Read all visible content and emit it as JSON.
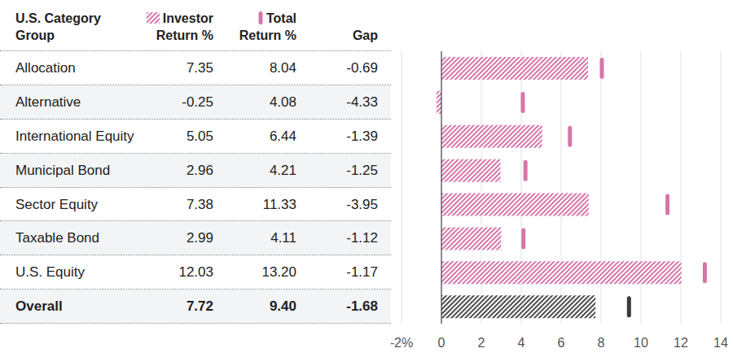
{
  "chart_data": {
    "type": "bar",
    "orientation": "horizontal",
    "ylabel": "U.S. Category Group",
    "categories": [
      "Allocation",
      "Alternative",
      "International Equity",
      "Municipal Bond",
      "Sector Equity",
      "Taxable Bond",
      "U.S. Equity",
      "Overall"
    ],
    "series": [
      {
        "name": "Investor Return %",
        "type": "bar",
        "colors": [
          "#d676ab",
          "#d676ab",
          "#d676ab",
          "#d676ab",
          "#d676ab",
          "#d676ab",
          "#d676ab",
          "#4d4d4d"
        ],
        "values": [
          7.35,
          -0.25,
          5.05,
          2.96,
          7.38,
          2.99,
          12.03,
          7.72
        ]
      },
      {
        "name": "Total Return %",
        "type": "scatter",
        "marker": "line",
        "colors": [
          "#d676ab",
          "#d676ab",
          "#d676ab",
          "#d676ab",
          "#d676ab",
          "#d676ab",
          "#d676ab",
          "#3a3a3a"
        ],
        "values": [
          8.04,
          4.08,
          6.44,
          4.21,
          11.33,
          4.11,
          13.2,
          9.4
        ],
        "value_labels": [
          "8.04",
          "4.08",
          "6.44",
          "4.21",
          "11.33",
          "4.11",
          "13.20",
          "9.40"
        ]
      }
    ],
    "gap": {
      "name": "Gap",
      "values": [
        -0.69,
        -4.33,
        -1.39,
        -1.25,
        -3.95,
        -1.12,
        -1.17,
        -1.68
      ]
    },
    "xlim": [
      -2,
      14
    ],
    "xticks": [
      {
        "value": -2,
        "label": "-2%"
      },
      0,
      2,
      4,
      6,
      8,
      10,
      12,
      14
    ],
    "grid": true,
    "tick_labels": "x",
    "data_labels": true
  }
}
